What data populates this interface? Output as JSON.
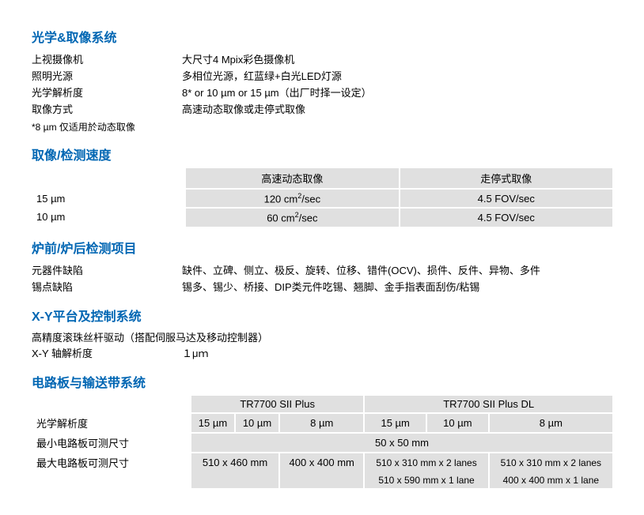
{
  "section_optics_title": "光学&取像系统",
  "optics_rows": [
    {
      "label": "上视摄像机",
      "value": "大尺寸4 Mpix彩色摄像机"
    },
    {
      "label": "照明光源",
      "value": "多相位光源，红蓝绿+白光LED灯源"
    },
    {
      "label": "光学解析度",
      "value": "8* or 10 µm or 15 µm（出厂时择一设定）"
    },
    {
      "label": "取像方式",
      "value": "高速动态取像或走停式取像"
    }
  ],
  "optics_note": "*8 µm 仅适用於动态取像",
  "section_speed_title": "取像/检测速度",
  "speed_header_left": "高速动态取像",
  "speed_header_right": "走停式取像",
  "speed_rows": [
    {
      "label": "15 µm",
      "left": "120 cm²/sec",
      "right": "4.5 FOV/sec"
    },
    {
      "label": "10 µm",
      "left": "60 cm²/sec",
      "right": "4.5 FOV/sec"
    }
  ],
  "section_inspection_title": "炉前/炉后检测项目",
  "inspection_rows": [
    {
      "label": "元器件缺陷",
      "value": "缺件、立碑、侧立、极反、旋转、位移、错件(OCV)、损件、反件、异物、多件"
    },
    {
      "label": "锡点缺陷",
      "value": "锡多、锡少、桥接、DIP类元件吃锡、翘脚、金手指表面刮伤/粘锡"
    }
  ],
  "section_xy_title": "X-Y平台及控制系统",
  "xy_desc": "高精度滚珠丝杆驱动（搭配伺服马达及移动控制器）",
  "xy_row": {
    "label": "X-Y 轴解析度",
    "value": "１μｍ"
  },
  "section_board_title": "电路板与输送带系统",
  "board_header_left": "TR7700 SII Plus",
  "board_header_right": "TR7700 SII Plus DL",
  "board_subheaders": [
    "15 µm",
    "10 µm",
    "8 µm",
    "15 µm",
    "10 µm",
    "8 µm"
  ],
  "board_row1_label": "光学解析度",
  "board_row2_label": "最小电路板可测尺寸",
  "board_row2_value": "50 x 50 mm",
  "board_row3_label": "最大电路板可测尺寸",
  "board_row3_left1": "510 x 460 mm",
  "board_row3_left2": "400 x 400 mm",
  "board_row3_r1": "510 x 310 mm x 2 lanes",
  "board_row3_r2": "510 x 310 mm x 2 lanes",
  "board_row4_r1": "510 x 590 mm x 1 lane",
  "board_row4_r2": "400 x 400 mm x 1 lane",
  "colors": {
    "heading": "#0066b3",
    "gray": "#e0e0e0"
  }
}
